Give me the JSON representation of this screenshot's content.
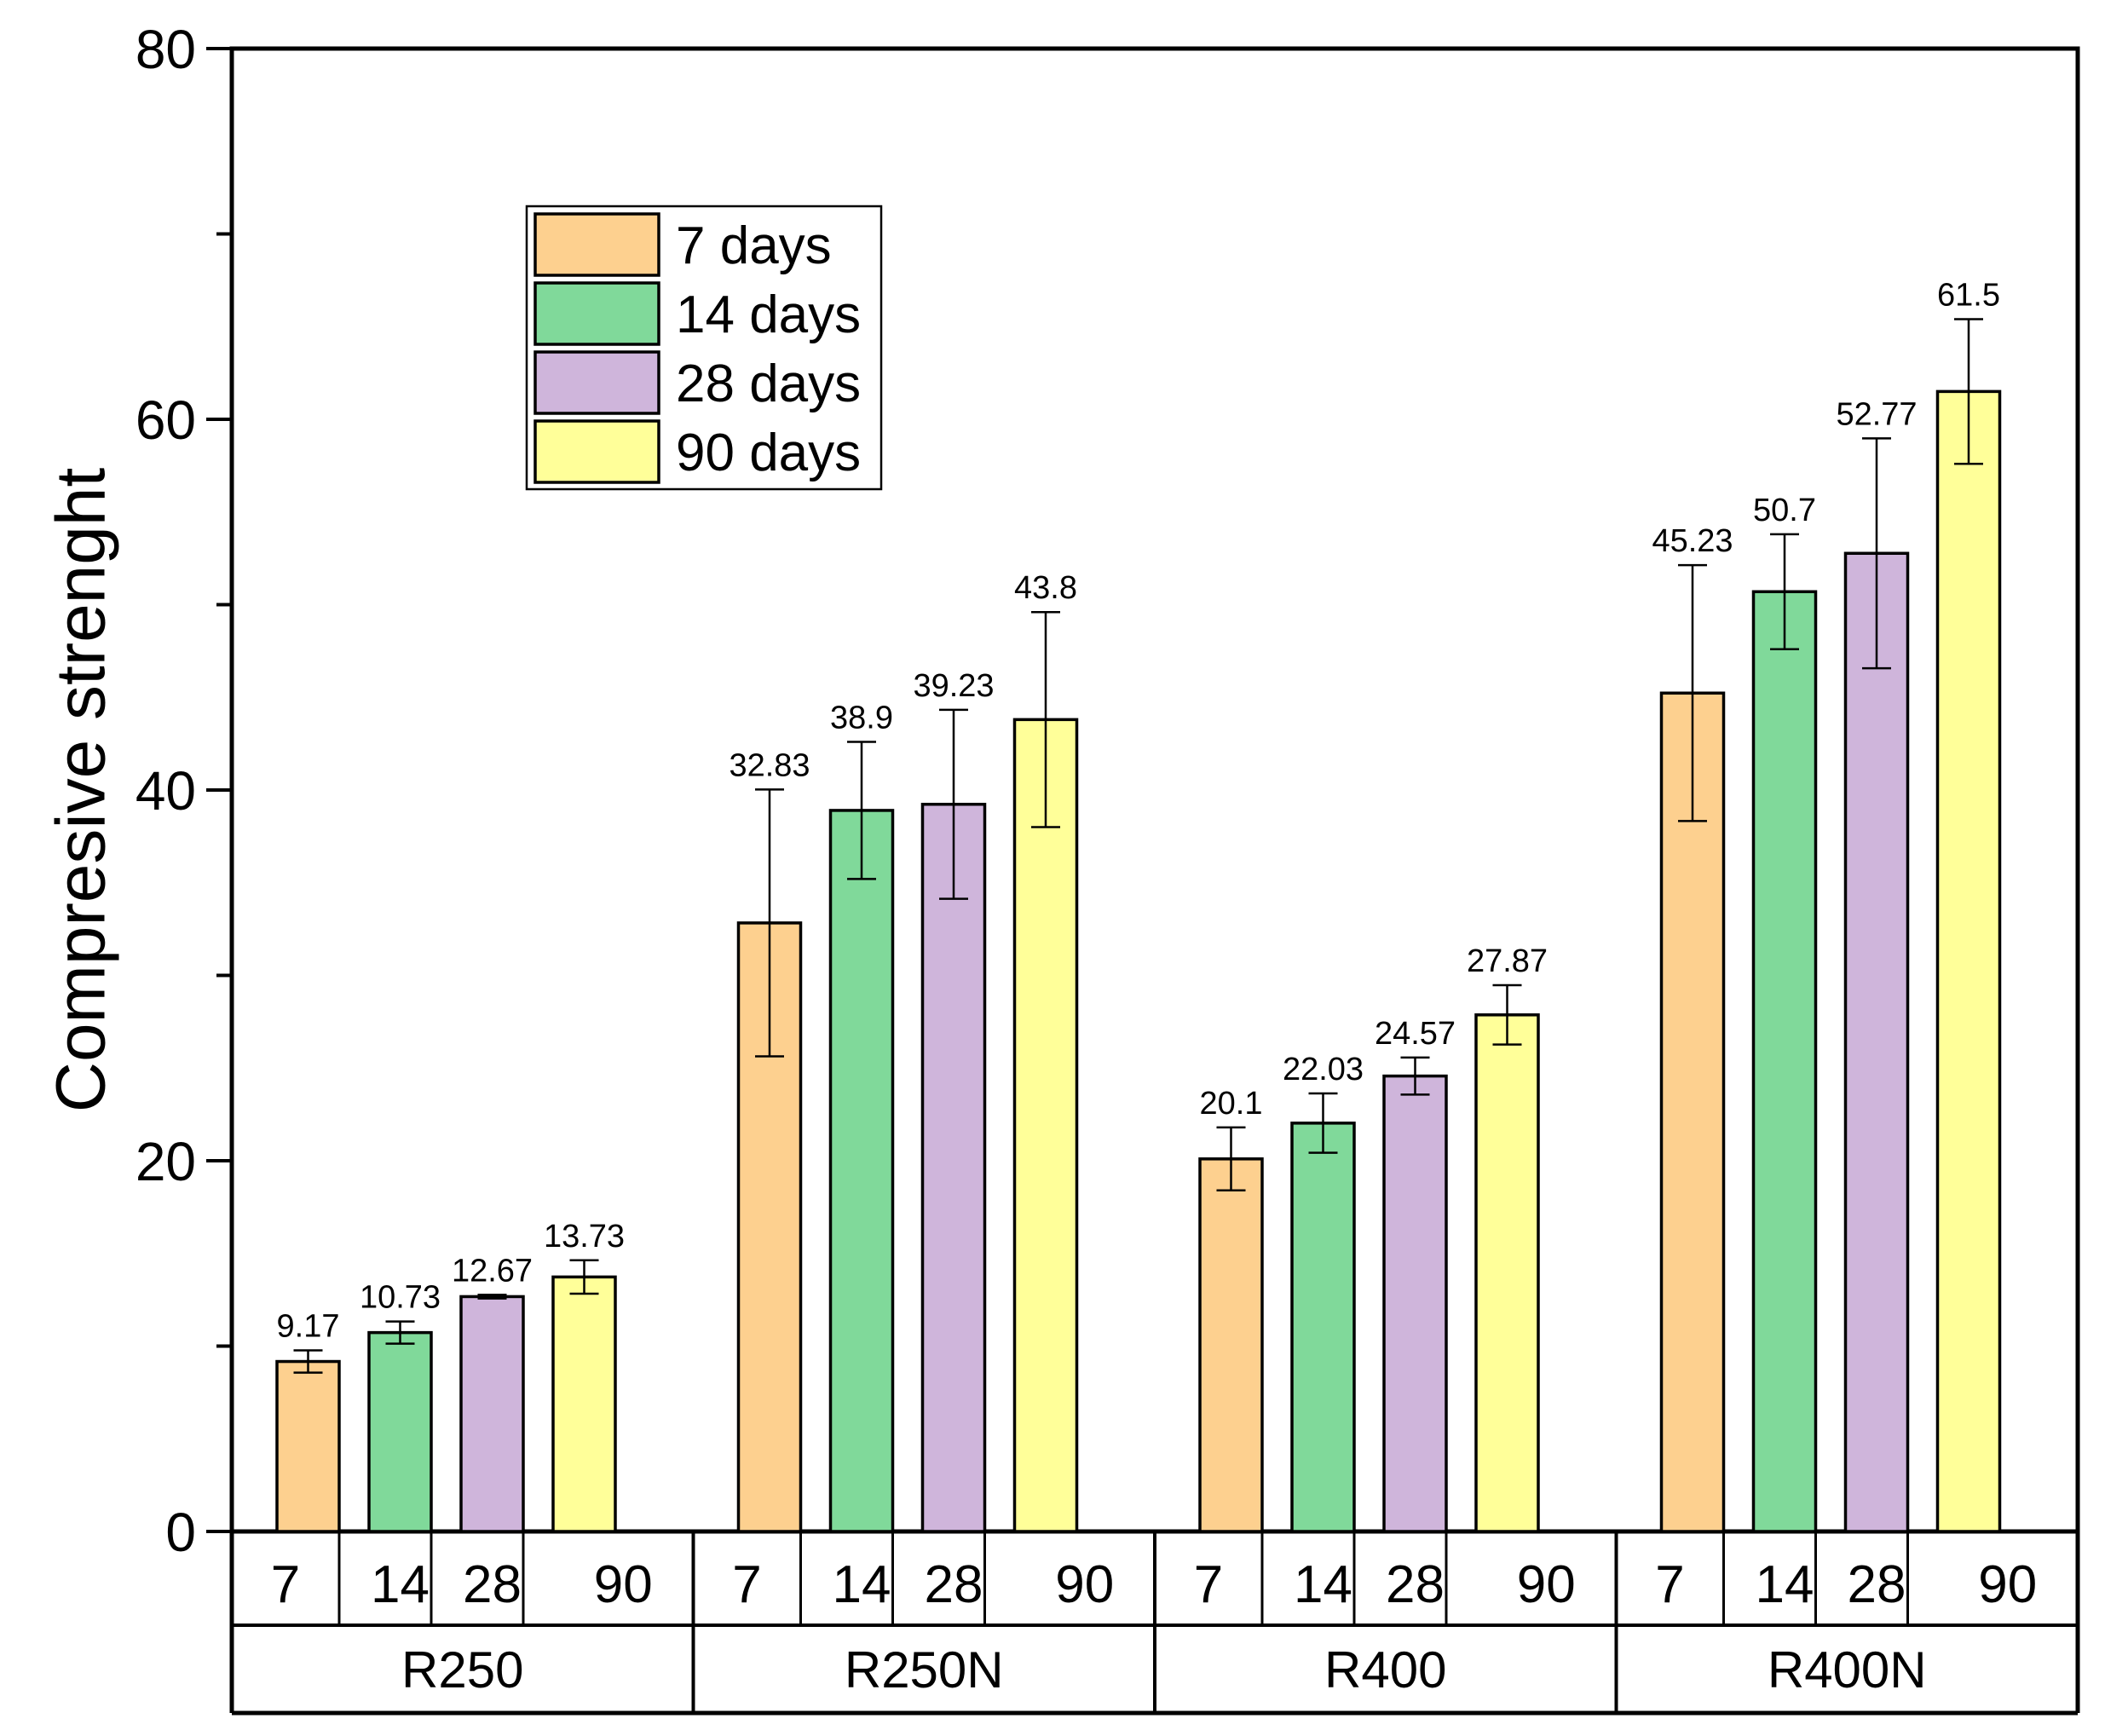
{
  "chart_data": {
    "type": "bar",
    "title": "",
    "ylabel": "Compresive strenght",
    "xlabel": "",
    "ylim": [
      0,
      80
    ],
    "yticks": [
      0,
      20,
      40,
      60,
      80
    ],
    "grid": false,
    "legend_position": "top-left",
    "groups": [
      "R250",
      "R250N",
      "R400",
      "R400N"
    ],
    "categories": [
      "7",
      "14",
      "28",
      "90"
    ],
    "series": [
      {
        "name": "7 days",
        "color": "#fdd08f",
        "values": [
          9.17,
          32.83,
          20.1,
          45.23
        ],
        "errors": [
          0.6,
          7.2,
          1.7,
          6.9
        ],
        "labels": [
          "9.17",
          "32.83",
          "20.1",
          "45.23"
        ]
      },
      {
        "name": "14 days",
        "color": "#80d99a",
        "values": [
          10.73,
          38.9,
          22.03,
          50.7
        ],
        "errors": [
          0.6,
          3.7,
          1.6,
          3.1
        ],
        "labels": [
          "10.73",
          "38.9",
          "22.03",
          "50.7"
        ]
      },
      {
        "name": "28 days",
        "color": "#cfb5db",
        "values": [
          12.67,
          39.23,
          24.57,
          52.77
        ],
        "errors": [
          0.1,
          5.1,
          1.0,
          6.2
        ],
        "labels": [
          "12.67",
          "39.23",
          "24.57",
          "52.77"
        ]
      },
      {
        "name": "90 days",
        "color": "#ffff99",
        "values": [
          13.73,
          43.8,
          27.87,
          61.5
        ],
        "errors": [
          0.9,
          5.8,
          1.6,
          3.9
        ],
        "labels": [
          "13.73",
          "43.8",
          "27.87",
          "61.5"
        ]
      }
    ]
  }
}
